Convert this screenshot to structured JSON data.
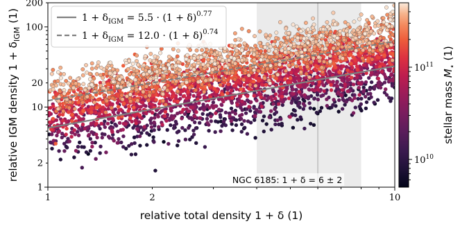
{
  "chart_data": {
    "type": "scatter",
    "title": "",
    "xlabel": "relative total density 1 + δ (1)",
    "ylabel": "relative IGM density 1 + δ_IGM (1)",
    "ylabel_main": "relative IGM density 1 + δ",
    "ylabel_sub": "IGM",
    "ylabel_tail": " (1)",
    "x_scale": "log",
    "y_scale": "log",
    "xlim": [
      1,
      10
    ],
    "ylim": [
      1,
      200
    ],
    "x_ticks": [
      {
        "value": 1,
        "label": "1"
      },
      {
        "value": 2,
        "label": "2"
      },
      {
        "value": 10,
        "label": "10"
      }
    ],
    "y_ticks": [
      {
        "value": 1,
        "label": "1"
      },
      {
        "value": 2,
        "label": "2"
      },
      {
        "value": 10,
        "label": "10"
      },
      {
        "value": 20,
        "label": "20"
      },
      {
        "value": 100,
        "label": "100"
      },
      {
        "value": 200,
        "label": "200"
      }
    ],
    "fit_lines": [
      {
        "name": "1 + δ_IGM = 5.5 · (1 + δ)^0.77",
        "label": "1 + δ",
        "sub": "IGM",
        "mid": " = 5.5 · (1 + δ)",
        "sup": "0.77",
        "a": 5.5,
        "b": 0.77,
        "style": "solid",
        "color": "#7f7f7f"
      },
      {
        "name": "1 + δ_IGM = 12.0 · (1 + δ)^0.74",
        "label": "1 + δ",
        "sub": "IGM",
        "mid": " = 12.0 · (1 + δ)",
        "sup": "0.74",
        "a": 12.0,
        "b": 0.74,
        "style": "dashed",
        "color": "#7f7f7f"
      }
    ],
    "shaded_band": {
      "x_range": [
        4,
        8
      ],
      "color": "#ebebeb"
    },
    "reference_line": {
      "x": 6,
      "color": "#c8c8c8"
    },
    "annotation": {
      "text": "NGC 6185: 1 + δ = 6 ± 2",
      "x": 6
    },
    "legend": {
      "placement": "top-left"
    },
    "grid": false,
    "colorbar": {
      "label": "stellar mass M⋆ (1)",
      "label_main": "stellar mass ",
      "label_var": "M",
      "label_sub": "⋆",
      "label_tail": " (1)",
      "scale": "log",
      "range": [
        5000000000.0,
        500000000000.0
      ],
      "colormap": "rocket",
      "ticks": [
        {
          "value": 10000000000.0,
          "base": "10",
          "exp": "10"
        },
        {
          "value": 100000000000.0,
          "base": "10",
          "exp": "11"
        }
      ]
    },
    "scatter_model": {
      "n_points": 3600,
      "relation": "1 + δ_IGM ≈ 5.5 · (1 + δ)^0.77 · scatter, colour = stellar mass",
      "x_range": [
        1,
        10
      ],
      "mass_range": [
        5000000000.0,
        500000000000.0
      ]
    }
  }
}
